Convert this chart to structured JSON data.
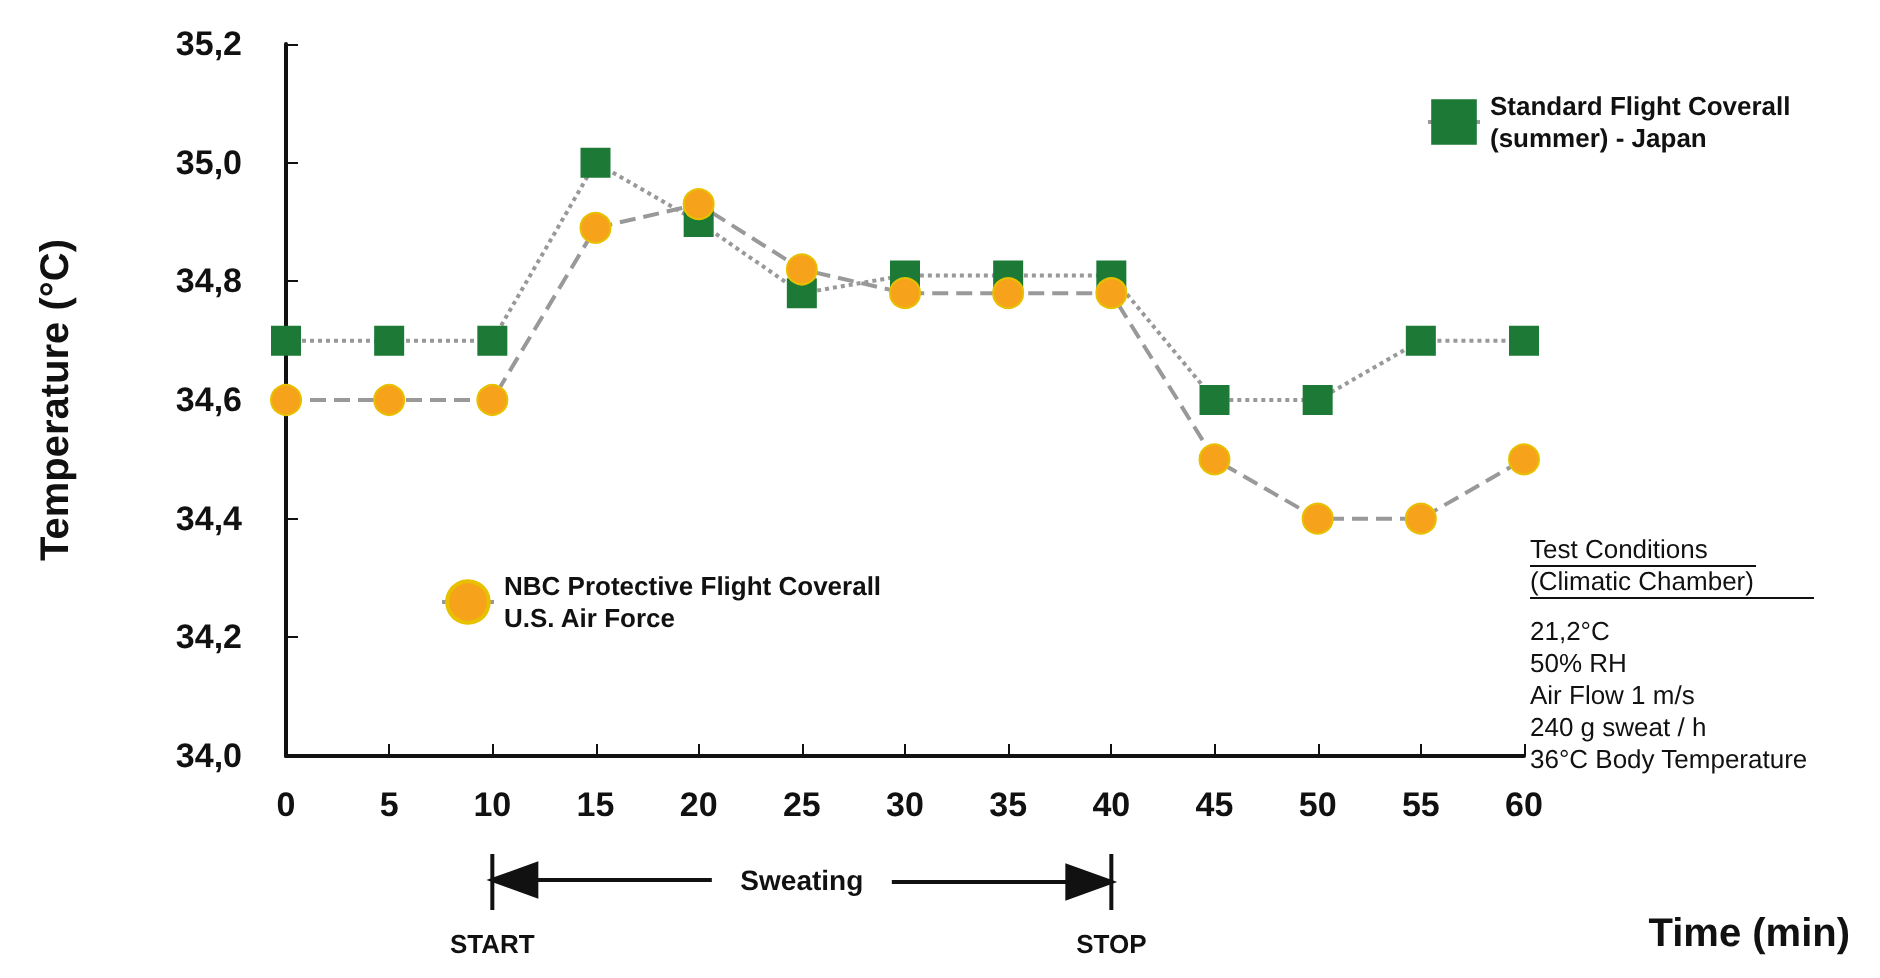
{
  "chart_data": {
    "type": "line",
    "xlabel": "Time (min)",
    "ylabel": "Temperature (°C)",
    "x": [
      0,
      5,
      10,
      15,
      20,
      25,
      30,
      35,
      40,
      45,
      50,
      55,
      60
    ],
    "series": [
      {
        "name": "Standard Flight Coverall (summer) - Japan",
        "color": "#1c7a36",
        "marker": "square",
        "line_style": "dotted",
        "values": [
          34.7,
          34.7,
          34.7,
          35.0,
          34.9,
          34.78,
          34.81,
          34.81,
          34.81,
          34.6,
          34.6,
          34.7,
          34.7
        ]
      },
      {
        "name": "NBC Protective Flight Coverall U.S. Air Force",
        "color": "#f7a21b",
        "marker": "circle",
        "line_style": "dashed",
        "values": [
          34.6,
          34.6,
          34.6,
          34.89,
          34.93,
          34.82,
          34.78,
          34.78,
          34.78,
          34.5,
          34.4,
          34.4,
          34.5
        ]
      }
    ],
    "xlim": [
      0,
      60
    ],
    "xticks": [
      0,
      5,
      10,
      15,
      20,
      25,
      30,
      35,
      40,
      45,
      50,
      55,
      60
    ],
    "ylim": [
      34.0,
      35.2
    ],
    "yticks": [
      {
        "value": 34.0,
        "label": "34,0"
      },
      {
        "value": 34.2,
        "label": "34,2"
      },
      {
        "value": 34.4,
        "label": "34,4"
      },
      {
        "value": 34.6,
        "label": "34,6"
      },
      {
        "value": 34.8,
        "label": "34,8"
      },
      {
        "value": 35.0,
        "label": "35,0"
      },
      {
        "value": 35.2,
        "label": "35,2"
      }
    ],
    "grid": false,
    "legend": "top right",
    "annotations": [
      "Sweating",
      {
        "text": "START",
        "x": 10
      },
      {
        "text": "STOP",
        "x": 40
      },
      "Test Conditions",
      "(Climatic Chamber)",
      "21,2°C",
      "50% RH",
      "Air Flow 1 m/s",
      "240 g sweat / h",
      "36°C Body Temperature"
    ]
  }
}
